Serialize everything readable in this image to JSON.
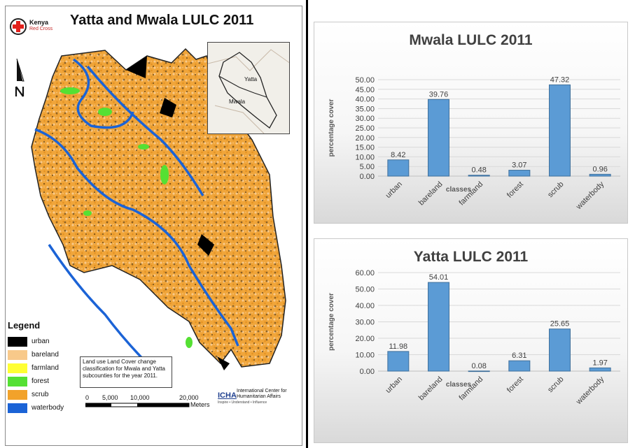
{
  "map": {
    "title": "Yatta and Mwala LULC 2011",
    "logo": {
      "line1": "Kenya",
      "line2": "Red Cross"
    },
    "inset": {
      "label_yatta": "Yatta",
      "label_mwala": "Mwala"
    },
    "legend": {
      "title": "Legend",
      "items": [
        {
          "label": "urban",
          "color": "#000000"
        },
        {
          "label": "bareland",
          "color": "#f8c98a"
        },
        {
          "label": "farmland",
          "color": "#ffff33"
        },
        {
          "label": "forest",
          "color": "#55e033"
        },
        {
          "label": "scrub",
          "color": "#f2a22a"
        },
        {
          "label": "waterbody",
          "color": "#1b63d6"
        }
      ]
    },
    "caption": "Land use Land Cover change classification for Mwala and Yatta subcounties for the year 2011.",
    "icha": {
      "mark": "ICHA",
      "name": "International Center for Humanitarian Affairs",
      "tagline": "Inspire • Understand • Influence"
    },
    "scale": {
      "labels": [
        "0",
        "5,000",
        "10,000",
        "20,000"
      ],
      "unit": "Meters"
    }
  },
  "chart_data": [
    {
      "type": "bar",
      "title": "Mwala LULC 2011",
      "xlabel": "classes",
      "ylabel": "percentage cover",
      "categories": [
        "urban",
        "bareland",
        "farmland",
        "forest",
        "scrub",
        "waterbody"
      ],
      "values": [
        8.42,
        39.76,
        0.48,
        3.07,
        47.32,
        0.96
      ],
      "value_labels": [
        "8.42",
        "39.76",
        "0.48",
        "3.07",
        "47.32",
        "0.96"
      ],
      "yticks": [
        "0.00",
        "5.00",
        "10.00",
        "15.00",
        "20.00",
        "25.00",
        "30.00",
        "35.00",
        "40.00",
        "45.00",
        "50.00"
      ],
      "ylim": [
        0,
        50
      ],
      "bar_color": "#5b9bd5",
      "grid": true,
      "legend": "none"
    },
    {
      "type": "bar",
      "title": "Yatta LULC 2011",
      "xlabel": "classes",
      "ylabel": "percentage cover",
      "categories": [
        "urban",
        "bareland",
        "farmland",
        "forest",
        "scrub",
        "waterbody"
      ],
      "values": [
        11.98,
        54.01,
        0.08,
        6.31,
        25.65,
        1.97
      ],
      "value_labels": [
        "11.98",
        "54.01",
        "0.08",
        "6.31",
        "25.65",
        "1.97"
      ],
      "yticks": [
        "0.00",
        "10.00",
        "20.00",
        "30.00",
        "40.00",
        "50.00",
        "60.00"
      ],
      "ylim": [
        0,
        60
      ],
      "bar_color": "#5b9bd5",
      "grid": true,
      "legend": "none"
    }
  ]
}
